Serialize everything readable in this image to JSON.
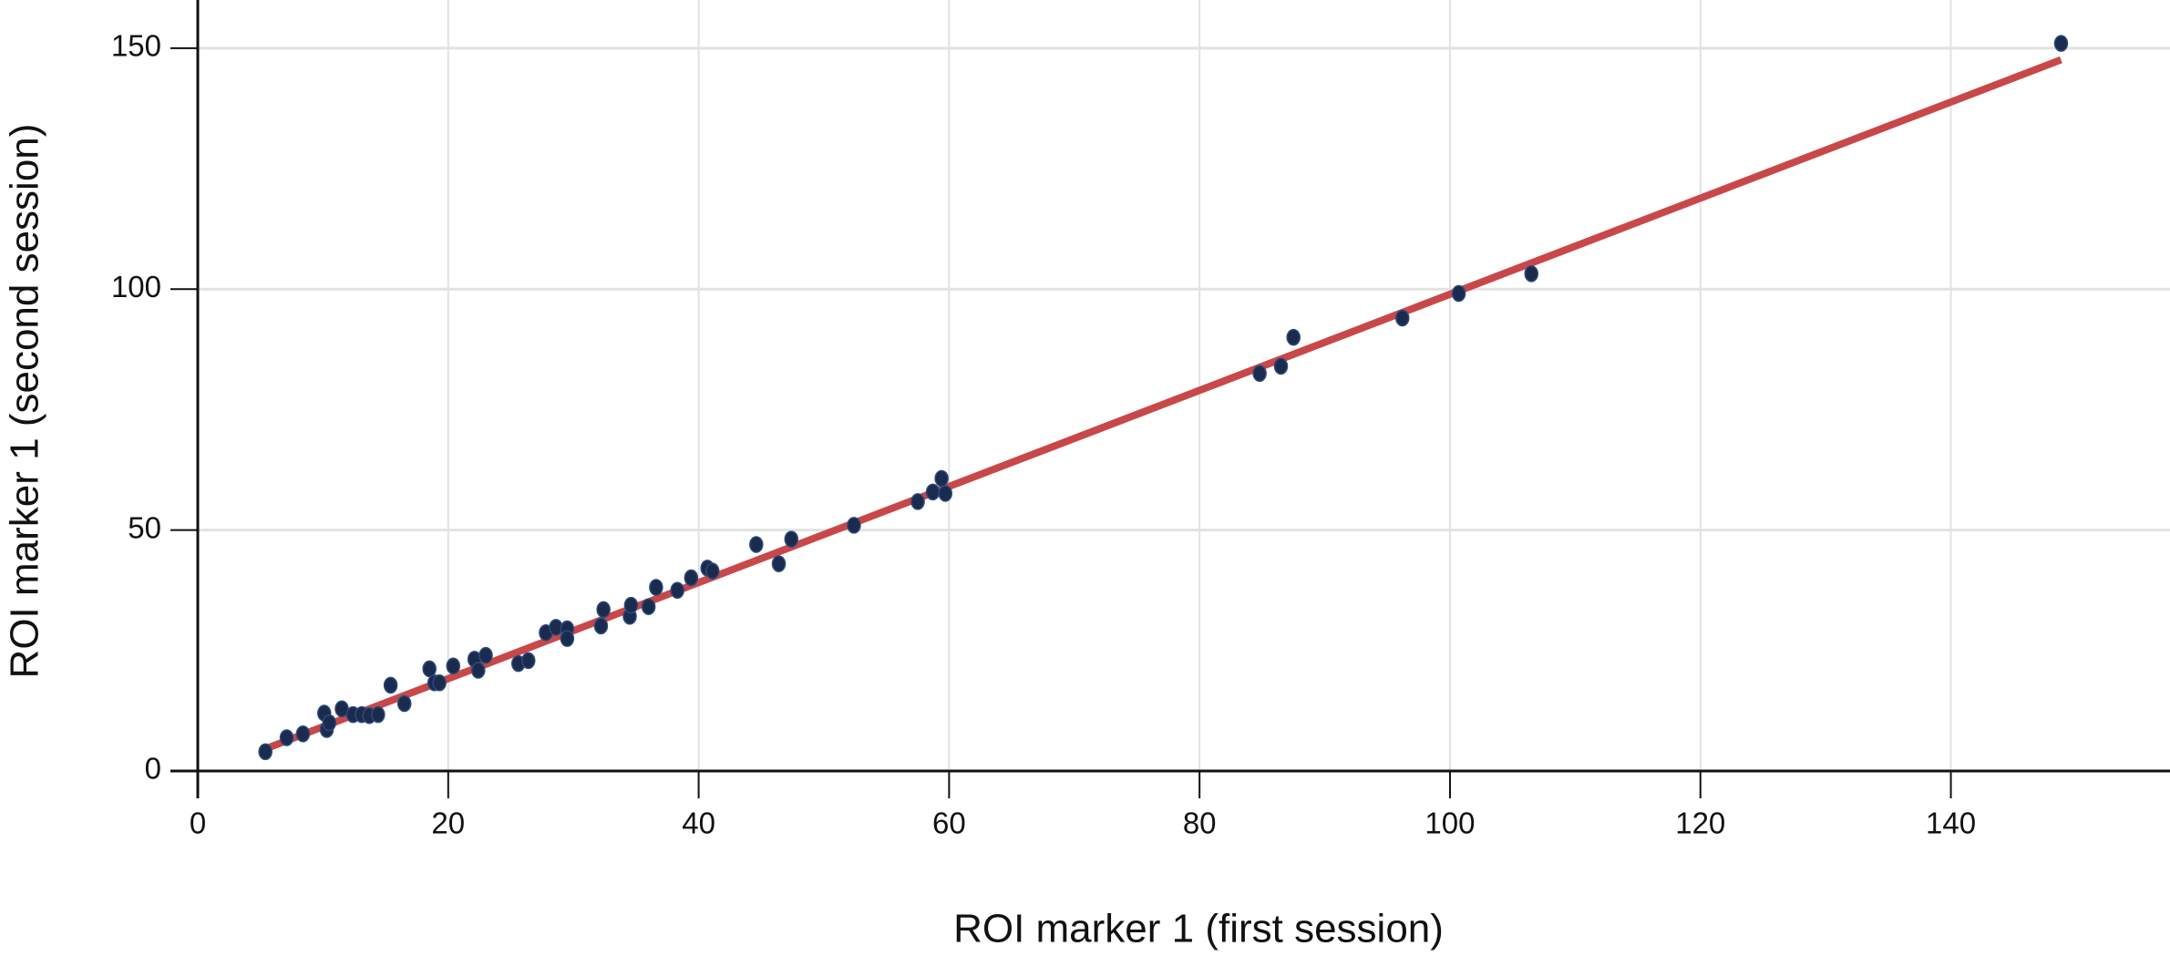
{
  "chart_data": {
    "type": "scatter",
    "x_label": "ROI marker 1 (first session)",
    "y_label": "ROI marker 1 (second session)",
    "xlim": [
      0,
      157.5
    ],
    "ylim": [
      0,
      160
    ],
    "xticks": [
      0,
      20,
      40,
      60,
      80,
      100,
      120,
      140
    ],
    "yticks": [
      0,
      50,
      100,
      150
    ],
    "grid": true,
    "color": "#1b2b4d",
    "x": [
      5.4,
      7.1,
      8.4,
      10.1,
      10.3,
      10.5,
      11.5,
      12.4,
      13.1,
      13.7,
      14.4,
      15.4,
      16.5,
      18.5,
      18.9,
      19.3,
      20.4,
      22.1,
      22.4,
      23,
      25.6,
      26.4,
      27.8,
      28.6,
      29.5,
      29.5,
      32.2,
      32.4,
      34.5,
      34.6,
      36,
      36.6,
      38.3,
      39.4,
      40.7,
      41.1,
      44.6,
      46.4,
      47.4,
      52.4,
      57.5,
      58.7,
      59.4,
      59.7,
      84.8,
      86.5,
      87.5,
      96.2,
      100.7,
      106.5,
      148.8
    ],
    "values": [
      4,
      6.9,
      7.7,
      12,
      8.6,
      10,
      12.9,
      11.7,
      11.7,
      11.5,
      11.7,
      17.8,
      14,
      21.2,
      18.3,
      18.3,
      21.8,
      23.2,
      20.9,
      24,
      22.3,
      22.9,
      28.7,
      29.8,
      29.5,
      27.5,
      30.1,
      33.5,
      32.1,
      34.4,
      34.1,
      38.1,
      37.5,
      40.1,
      42.1,
      41.5,
      47,
      43,
      48.1,
      51,
      55.9,
      57.9,
      60.7,
      57.6,
      82.5,
      84,
      90,
      94,
      99.1,
      103.2,
      151
    ],
    "fit_line": {
      "color": "#c8484a",
      "x": [
        5.4,
        148.8
      ],
      "values": [
        4.6,
        147.6
      ]
    }
  }
}
